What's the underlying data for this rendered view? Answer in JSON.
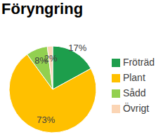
{
  "chart_data": {
    "type": "pie",
    "title": "Föryngring",
    "categories": [
      "Fröträd",
      "Plant",
      "Sådd",
      "Övrigt"
    ],
    "values": [
      17,
      73,
      8,
      2
    ],
    "value_labels": [
      "17%",
      "73%",
      "8%",
      "2%"
    ],
    "colors": [
      "#1d9e4c",
      "#ffc000",
      "#92d050",
      "#fbd5b5"
    ],
    "data_labels": true,
    "legend": "right"
  }
}
